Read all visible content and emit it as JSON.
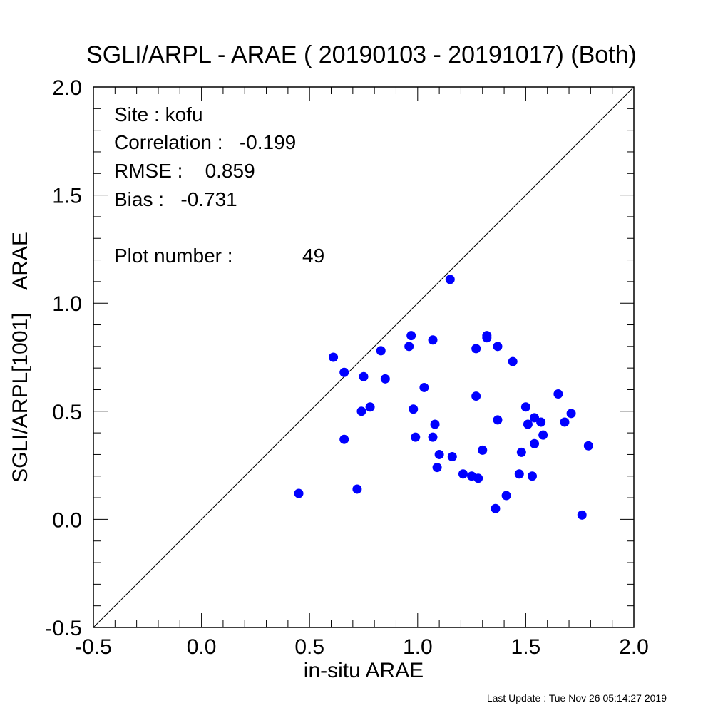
{
  "chart_data": {
    "type": "scatter",
    "title": "SGLI/ARPL - ARAE ( 20190103 - 20191017) (Both)",
    "xlabel": "in-situ ARAE",
    "ylabel": "SGLI/ARPL[1001]    ARAE",
    "xlim": [
      -0.5,
      2.0
    ],
    "ylim": [
      -0.5,
      2.0
    ],
    "x_ticks": [
      "-0.5",
      "0.0",
      "0.5",
      "1.0",
      "1.5",
      "2.0"
    ],
    "y_ticks": [
      "-0.5",
      "0.0",
      "0.5",
      "1.0",
      "1.5",
      "2.0"
    ],
    "reference_line": "1:1",
    "grid": false,
    "marker_color": "#0000ff",
    "points": [
      {
        "x": 0.45,
        "y": 0.12
      },
      {
        "x": 0.61,
        "y": 0.75
      },
      {
        "x": 0.66,
        "y": 0.68
      },
      {
        "x": 0.66,
        "y": 0.37
      },
      {
        "x": 0.72,
        "y": 0.14
      },
      {
        "x": 0.74,
        "y": 0.5
      },
      {
        "x": 0.75,
        "y": 0.66
      },
      {
        "x": 0.78,
        "y": 0.52
      },
      {
        "x": 0.83,
        "y": 0.78
      },
      {
        "x": 0.85,
        "y": 0.65
      },
      {
        "x": 0.96,
        "y": 0.8
      },
      {
        "x": 0.97,
        "y": 0.85
      },
      {
        "x": 0.98,
        "y": 0.51
      },
      {
        "x": 0.99,
        "y": 0.38
      },
      {
        "x": 1.03,
        "y": 0.61
      },
      {
        "x": 1.07,
        "y": 0.83
      },
      {
        "x": 1.07,
        "y": 0.38
      },
      {
        "x": 1.08,
        "y": 0.44
      },
      {
        "x": 1.09,
        "y": 0.24
      },
      {
        "x": 1.1,
        "y": 0.3
      },
      {
        "x": 1.15,
        "y": 1.11
      },
      {
        "x": 1.16,
        "y": 0.29
      },
      {
        "x": 1.21,
        "y": 0.21
      },
      {
        "x": 1.25,
        "y": 0.2
      },
      {
        "x": 1.27,
        "y": 0.79
      },
      {
        "x": 1.27,
        "y": 0.57
      },
      {
        "x": 1.28,
        "y": 0.19
      },
      {
        "x": 1.3,
        "y": 0.32
      },
      {
        "x": 1.32,
        "y": 0.84
      },
      {
        "x": 1.32,
        "y": 0.85
      },
      {
        "x": 1.36,
        "y": 0.05
      },
      {
        "x": 1.37,
        "y": 0.8
      },
      {
        "x": 1.37,
        "y": 0.46
      },
      {
        "x": 1.41,
        "y": 0.11
      },
      {
        "x": 1.44,
        "y": 0.73
      },
      {
        "x": 1.47,
        "y": 0.21
      },
      {
        "x": 1.48,
        "y": 0.31
      },
      {
        "x": 1.5,
        "y": 0.52
      },
      {
        "x": 1.51,
        "y": 0.44
      },
      {
        "x": 1.53,
        "y": 0.2
      },
      {
        "x": 1.54,
        "y": 0.47
      },
      {
        "x": 1.54,
        "y": 0.35
      },
      {
        "x": 1.57,
        "y": 0.45
      },
      {
        "x": 1.58,
        "y": 0.39
      },
      {
        "x": 1.65,
        "y": 0.58
      },
      {
        "x": 1.68,
        "y": 0.45
      },
      {
        "x": 1.71,
        "y": 0.49
      },
      {
        "x": 1.76,
        "y": 0.02
      },
      {
        "x": 1.79,
        "y": 0.34
      }
    ]
  },
  "stats": {
    "site": "Site : kofu",
    "correlation": "Correlation :   -0.199",
    "rmse": "RMSE :    0.859",
    "bias": "Bias :   -0.731",
    "plot_number": "Plot number :",
    "plot_number_value": "49"
  },
  "footer": {
    "last_update": "Last Update : Tue Nov 26 05:14:27 2019"
  }
}
